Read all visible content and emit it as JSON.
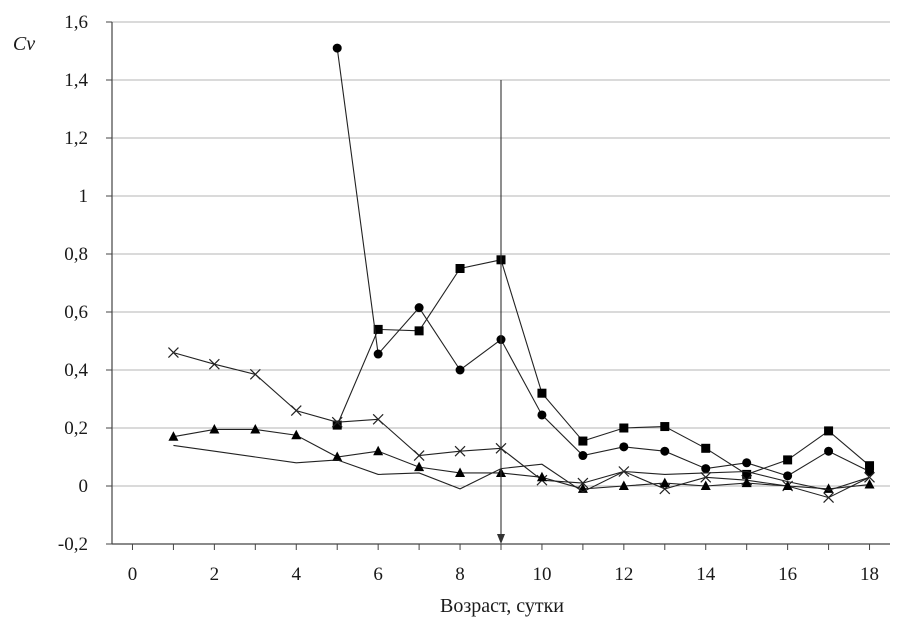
{
  "chart_data": {
    "type": "line",
    "title": "",
    "xlabel": "Возраст, сутки",
    "ylabel": "Cv",
    "xlim": [
      -0.5,
      18.5
    ],
    "ylim": [
      -0.2,
      1.6
    ],
    "x_ticks": [
      0,
      2,
      4,
      6,
      8,
      10,
      12,
      14,
      16,
      18
    ],
    "y_ticks": [
      -0.2,
      0,
      0.2,
      0.4,
      0.6,
      0.8,
      1,
      1.2,
      1.4,
      1.6
    ],
    "x_tick_labels": [
      "0",
      "2",
      "4",
      "6",
      "8",
      "10",
      "12",
      "14",
      "16",
      "18"
    ],
    "y_tick_labels": [
      "-0,2",
      "0",
      "0,2",
      "0,4",
      "0,6",
      "0,8",
      "1",
      "1,2",
      "1,4",
      "1,6"
    ],
    "grid": true,
    "legend": "none",
    "marker_line": {
      "x": 9,
      "y_from": 1.4,
      "y_to": -0.2,
      "arrow": "down"
    },
    "series": [
      {
        "marker": "square",
        "color": "#000000",
        "x": [
          5,
          6,
          7,
          8,
          9,
          10,
          11,
          12,
          13,
          14,
          15,
          16,
          17,
          18
        ],
        "y": [
          0.21,
          0.54,
          0.535,
          0.75,
          0.78,
          0.32,
          0.155,
          0.2,
          0.205,
          0.13,
          0.04,
          0.09,
          0.19,
          0.07
        ]
      },
      {
        "marker": "circle",
        "color": "#000000",
        "x": [
          5,
          6,
          7,
          8,
          9,
          10,
          11,
          12,
          13,
          14,
          15,
          16,
          17,
          18
        ],
        "y": [
          1.51,
          0.455,
          0.615,
          0.4,
          0.505,
          0.245,
          0.105,
          0.135,
          0.12,
          0.06,
          0.08,
          0.035,
          0.12,
          0.05
        ]
      },
      {
        "marker": "x",
        "color": "#000000",
        "x": [
          1,
          2,
          3,
          4,
          5,
          6,
          7,
          8,
          9,
          10,
          11,
          12,
          13,
          14,
          15,
          16,
          17,
          18
        ],
        "y": [
          0.46,
          0.42,
          0.385,
          0.26,
          0.22,
          0.23,
          0.105,
          0.12,
          0.13,
          0.02,
          0.01,
          0.05,
          -0.01,
          0.03,
          0.02,
          0.0,
          -0.04,
          0.03
        ]
      },
      {
        "marker": "triangle",
        "color": "#000000",
        "x": [
          1,
          2,
          3,
          4,
          5,
          6,
          7,
          8,
          9,
          10,
          11,
          12,
          13,
          14,
          15,
          16,
          17,
          18
        ],
        "y": [
          0.17,
          0.195,
          0.195,
          0.175,
          0.1,
          0.12,
          0.065,
          0.045,
          0.045,
          0.03,
          -0.01,
          0.0,
          0.01,
          0.0,
          0.01,
          0.0,
          -0.01,
          0.005
        ]
      },
      {
        "marker": "none",
        "color": "#000000",
        "x": [
          1,
          2,
          3,
          4,
          5,
          6,
          7,
          8,
          9,
          10,
          11,
          12,
          13,
          14,
          15,
          16,
          17,
          18
        ],
        "y": [
          0.14,
          0.12,
          0.1,
          0.08,
          0.09,
          0.04,
          0.045,
          -0.01,
          0.06,
          0.075,
          -0.02,
          0.05,
          0.04,
          0.045,
          0.05,
          0.015,
          -0.015,
          0.03
        ]
      }
    ]
  }
}
